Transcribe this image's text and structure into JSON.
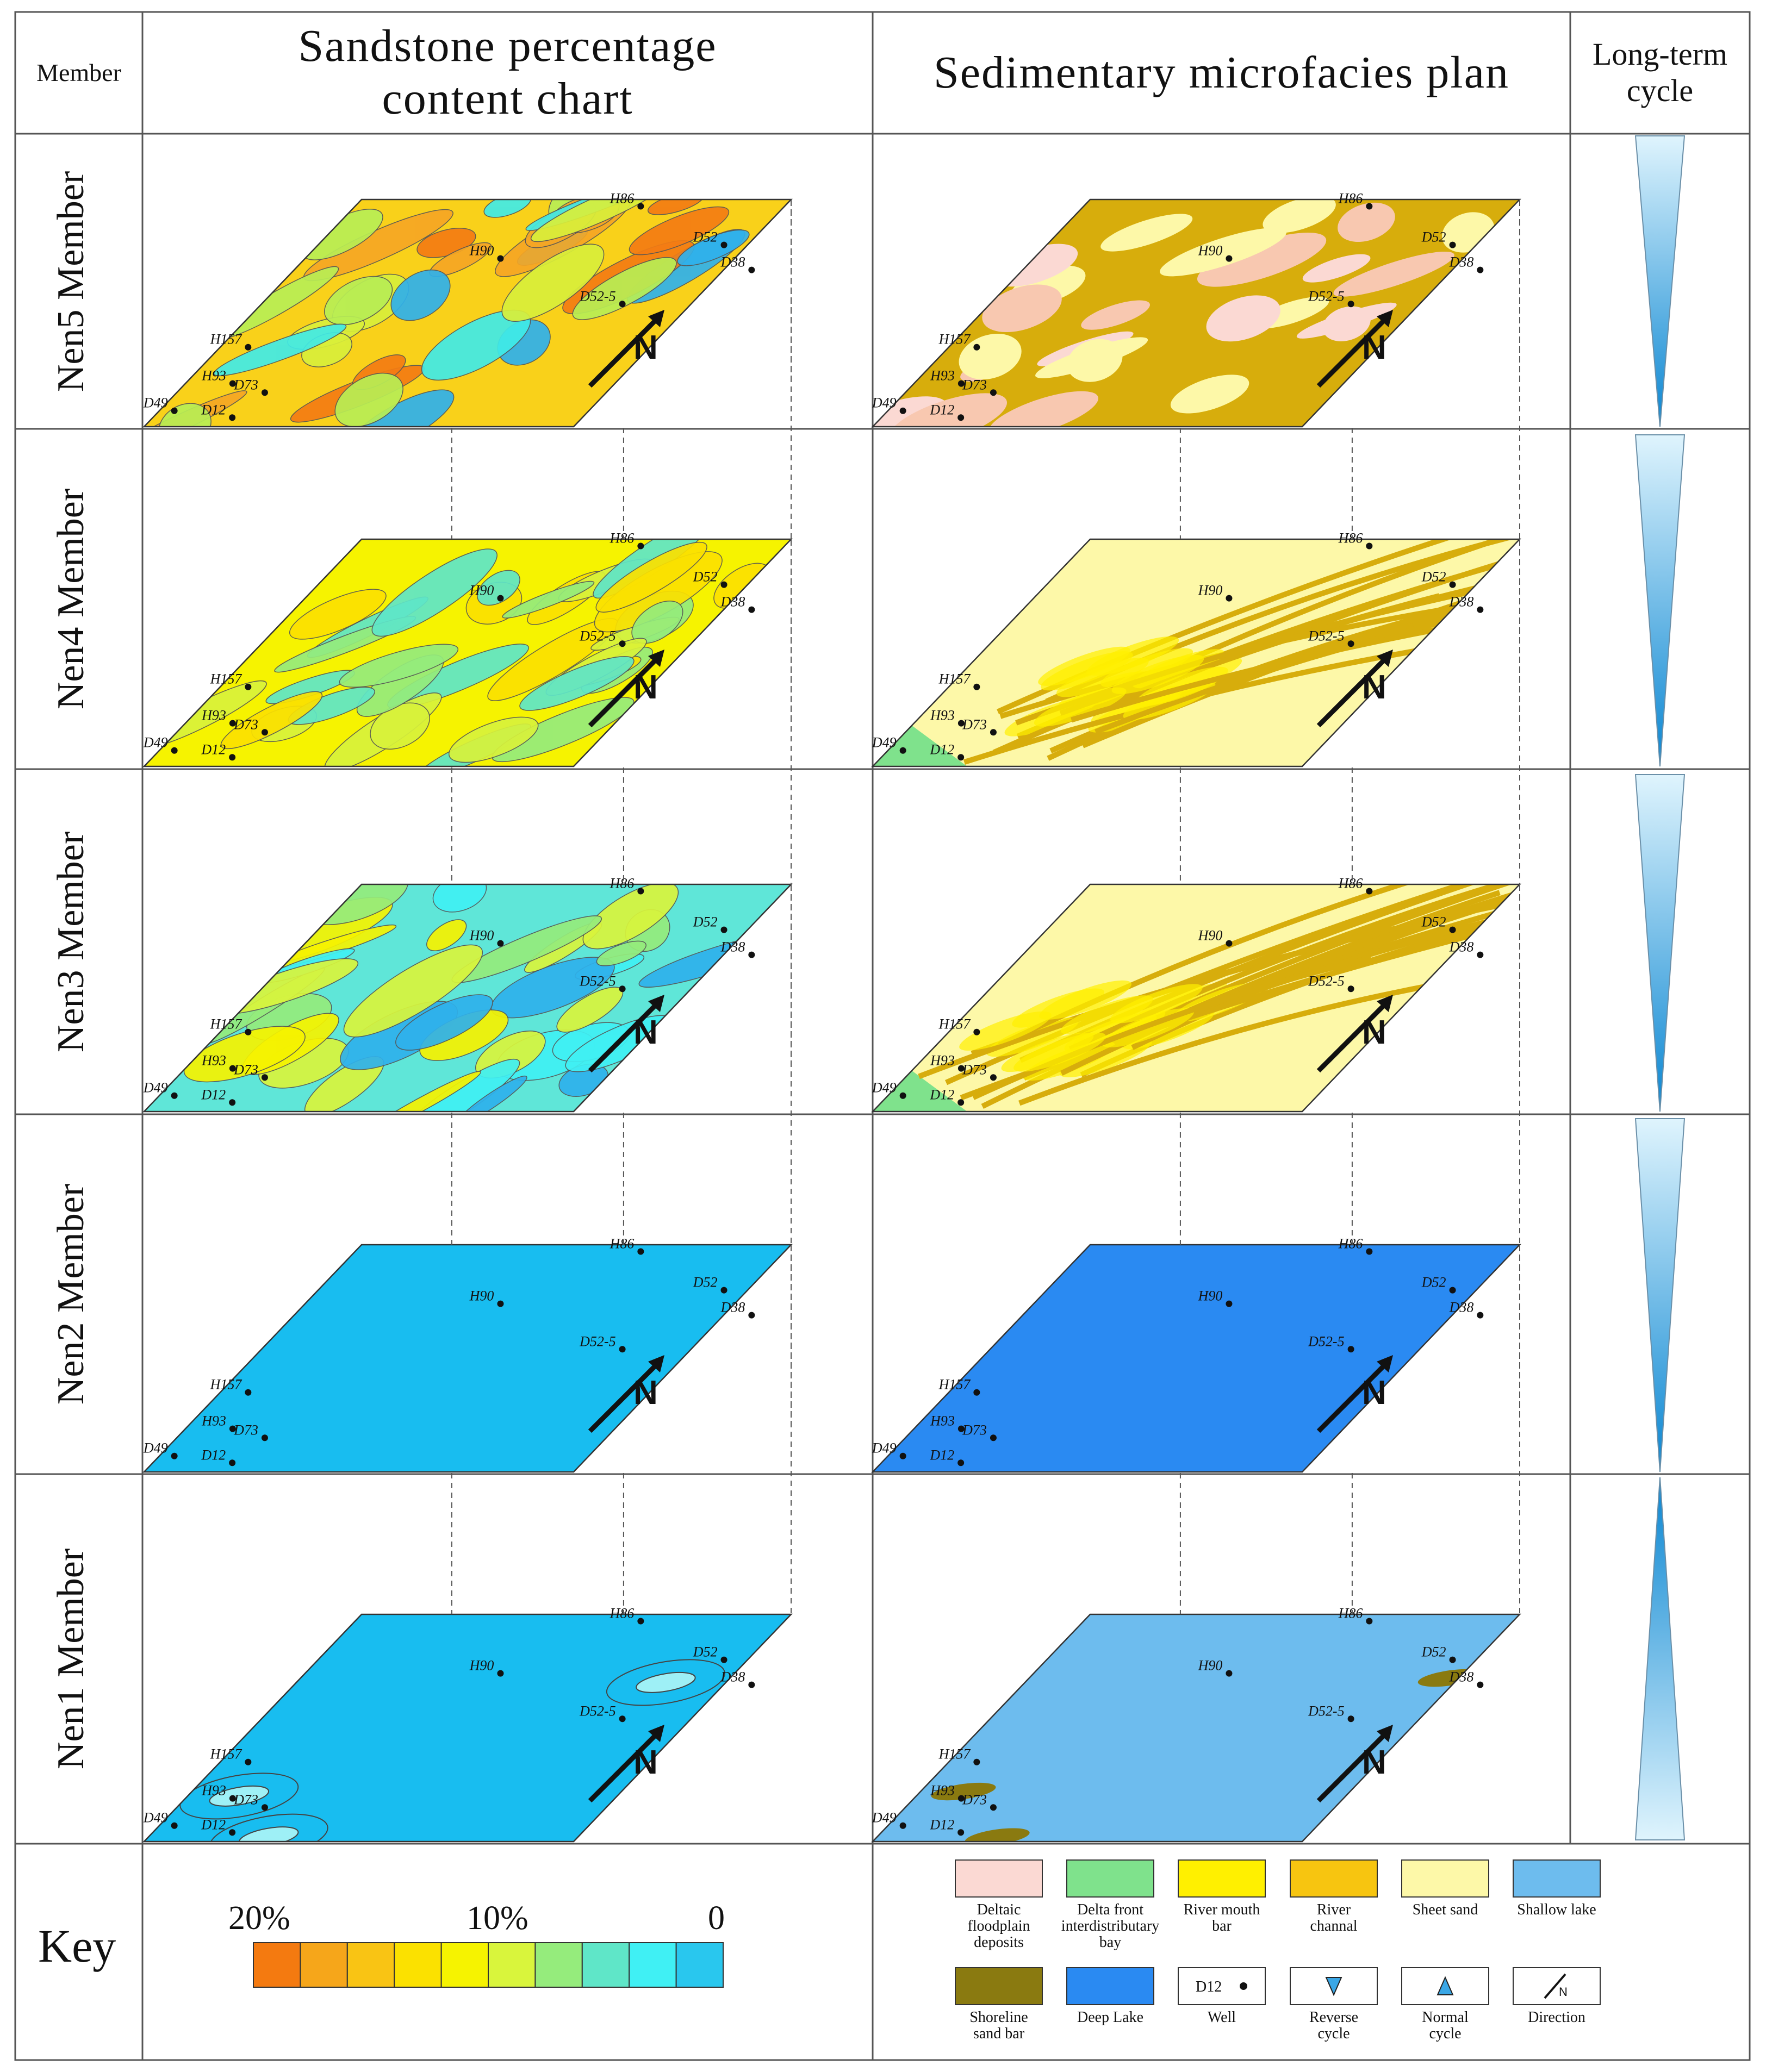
{
  "headers": {
    "member": "Member",
    "sandstone": [
      "Sandstone percentage",
      "content chart"
    ],
    "microfacies": "Sedimentary microfacies plan",
    "cycle": [
      "Long-term",
      "cycle"
    ]
  },
  "members": [
    {
      "label": "Nen5 Member",
      "sand_style": "mixed",
      "facies_style": "channel-dense",
      "cycle": "reverse"
    },
    {
      "label": "Nen4 Member",
      "sand_style": "yellow-green",
      "facies_style": "distributary",
      "cycle": "reverse"
    },
    {
      "label": "Nen3 Member",
      "sand_style": "green-cyan",
      "facies_style": "distributary",
      "cycle": "reverse"
    },
    {
      "label": "Nen2 Member",
      "sand_style": "flat-blue",
      "facies_style": "deep-lake",
      "cycle": "reverse"
    },
    {
      "label": "Nen1 Member",
      "sand_style": "blue-spots",
      "facies_style": "shallow-lake",
      "cycle": "normal"
    }
  ],
  "wells": [
    {
      "id": "H86"
    },
    {
      "id": "D52"
    },
    {
      "id": "D38"
    },
    {
      "id": "H90"
    },
    {
      "id": "D52-5"
    },
    {
      "id": "H157"
    },
    {
      "id": "H93"
    },
    {
      "id": "D73"
    },
    {
      "id": "D12"
    },
    {
      "id": "D49"
    }
  ],
  "north_label": "N",
  "key": {
    "title": "Key",
    "scale_labels": [
      "20%",
      "10%",
      "0"
    ],
    "scale_colors": [
      "#f47a10",
      "#f6a61a",
      "#f9c414",
      "#fbe100",
      "#f6f300",
      "#d9f53c",
      "#95ec7c",
      "#5fe6c8",
      "#40f0f4",
      "#29c7ee"
    ],
    "legend": [
      {
        "label": "Deltaic floodplain deposits",
        "lines": [
          "Deltaic",
          "floodplain",
          "deposits"
        ],
        "color": "#fbd9d3",
        "icon": "swatch"
      },
      {
        "label": "Delta front interdistributary bay",
        "lines": [
          "Delta front",
          "interdistributary",
          "bay"
        ],
        "color": "#7fe28c",
        "icon": "swatch"
      },
      {
        "label": "River mouth bar",
        "lines": [
          "River mouth",
          "bar"
        ],
        "color": "#fff000",
        "icon": "swatch"
      },
      {
        "label": "River channal",
        "lines": [
          "River",
          "channal"
        ],
        "color": "#f7c510",
        "icon": "swatch"
      },
      {
        "label": "Sheet sand",
        "lines": [
          "Sheet  sand"
        ],
        "color": "#fdf8a8",
        "icon": "swatch"
      },
      {
        "label": "Shallow lake",
        "lines": [
          "Shallow  lake"
        ],
        "color": "#6dbcee",
        "icon": "swatch"
      },
      {
        "label": "Shoreline sand bar",
        "lines": [
          "Shoreline",
          "sand bar"
        ],
        "color": "#8a7a10",
        "icon": "swatch"
      },
      {
        "label": "Deep Lake",
        "lines": [
          "Deep  Lake"
        ],
        "color": "#2a8af2",
        "icon": "swatch"
      },
      {
        "label": "Well",
        "lines": [
          "Well"
        ],
        "color": "#ffffff",
        "icon": "well",
        "sample": "D12"
      },
      {
        "label": "Reverse cycle",
        "lines": [
          "Reverse",
          "cycle"
        ],
        "color": "#ffffff",
        "icon": "reverse-triangle"
      },
      {
        "label": "Normal cycle",
        "lines": [
          "Normal",
          "cycle"
        ],
        "color": "#ffffff",
        "icon": "normal-triangle"
      },
      {
        "label": "Direction",
        "lines": [
          "Direction"
        ],
        "color": "#ffffff",
        "icon": "direction",
        "sample": "N"
      }
    ]
  },
  "colors": {
    "border": "#555555",
    "cycle_light": "#dff4fd",
    "cycle_dark": "#0a86d2"
  }
}
